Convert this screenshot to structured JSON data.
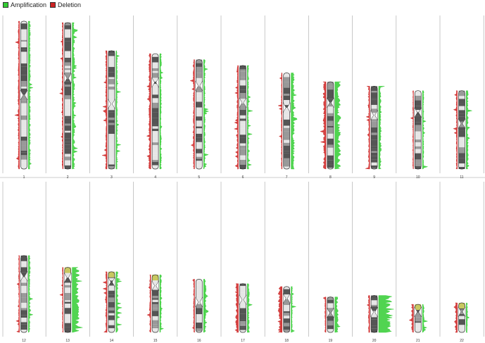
{
  "legend": {
    "amplification_label": "Amplification",
    "deletion_label": "Deletion",
    "amplification_color": "#33cc33",
    "deletion_color": "#cc2222"
  },
  "colors": {
    "band_dark": "#555555",
    "band_mid": "#999999",
    "band_light": "#e6e6e6",
    "divider": "#bbbbbb"
  },
  "rows": [
    {
      "chromosomes": [
        {
          "label": "1",
          "len": 1.0,
          "cen": 0.5,
          "amp": 0.12,
          "del": 0.1
        },
        {
          "label": "2",
          "len": 0.99,
          "cen": 0.38,
          "amp": 0.15,
          "del": 0.08
        },
        {
          "label": "3",
          "len": 0.8,
          "cen": 0.45,
          "amp": 0.08,
          "del": 0.1
        },
        {
          "label": "4",
          "len": 0.78,
          "cen": 0.25,
          "amp": 0.1,
          "del": 0.15
        },
        {
          "label": "5",
          "len": 0.74,
          "cen": 0.24,
          "amp": 0.1,
          "del": 0.1
        },
        {
          "label": "6",
          "len": 0.7,
          "cen": 0.36,
          "amp": 0.08,
          "del": 0.1
        },
        {
          "label": "7",
          "len": 0.65,
          "cen": 0.36,
          "amp": 0.2,
          "del": 0.06
        },
        {
          "label": "8",
          "len": 0.59,
          "cen": 0.24,
          "amp": 0.35,
          "del": 0.2
        },
        {
          "label": "9",
          "len": 0.56,
          "cen": 0.35,
          "amp": 0.15,
          "del": 0.1
        },
        {
          "label": "10",
          "len": 0.53,
          "cen": 0.28,
          "amp": 0.08,
          "del": 0.06
        },
        {
          "label": "11",
          "len": 0.53,
          "cen": 0.42,
          "amp": 0.12,
          "del": 0.08
        }
      ]
    },
    {
      "chromosomes": [
        {
          "label": "12",
          "len": 0.52,
          "cen": 0.27,
          "amp": 0.1,
          "del": 0.06
        },
        {
          "label": "13",
          "len": 0.44,
          "cen": 0.16,
          "amp": 0.4,
          "del": 0.06,
          "acro": true
        },
        {
          "label": "14",
          "len": 0.41,
          "cen": 0.17,
          "amp": 0.12,
          "del": 0.1,
          "acro": true
        },
        {
          "label": "15",
          "len": 0.39,
          "cen": 0.19,
          "amp": 0.1,
          "del": 0.08,
          "acro": true
        },
        {
          "label": "16",
          "len": 0.36,
          "cen": 0.43,
          "amp": 0.15,
          "del": 0.08
        },
        {
          "label": "17",
          "len": 0.33,
          "cen": 0.33,
          "amp": 0.12,
          "del": 0.2
        },
        {
          "label": "18",
          "len": 0.31,
          "cen": 0.26,
          "amp": 0.08,
          "del": 0.3
        },
        {
          "label": "19",
          "len": 0.24,
          "cen": 0.45,
          "amp": 0.2,
          "del": 0.08
        },
        {
          "label": "20",
          "len": 0.25,
          "cen": 0.45,
          "amp": 0.9,
          "del": 0.1
        },
        {
          "label": "21",
          "len": 0.19,
          "cen": 0.27,
          "amp": 0.1,
          "del": 0.15,
          "acro": true
        },
        {
          "label": "22",
          "len": 0.2,
          "cen": 0.3,
          "amp": 0.08,
          "del": 0.15,
          "acro": true
        }
      ]
    }
  ]
}
